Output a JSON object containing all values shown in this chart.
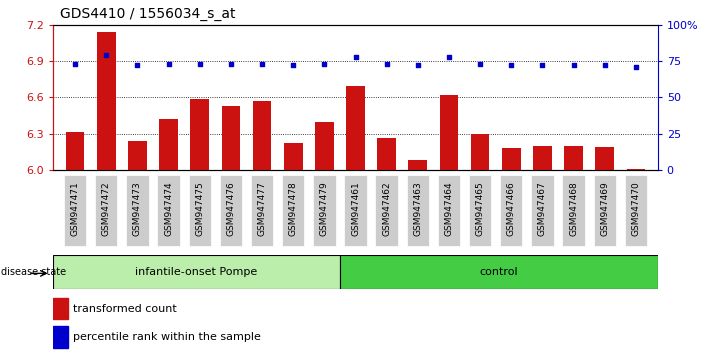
{
  "title": "GDS4410 / 1556034_s_at",
  "samples": [
    "GSM947471",
    "GSM947472",
    "GSM947473",
    "GSM947474",
    "GSM947475",
    "GSM947476",
    "GSM947477",
    "GSM947478",
    "GSM947479",
    "GSM947461",
    "GSM947462",
    "GSM947463",
    "GSM947464",
    "GSM947465",
    "GSM947466",
    "GSM947467",
    "GSM947468",
    "GSM947469",
    "GSM947470"
  ],
  "bar_values": [
    6.31,
    7.14,
    6.24,
    6.42,
    6.59,
    6.53,
    6.57,
    6.22,
    6.4,
    6.69,
    6.26,
    6.08,
    6.62,
    6.3,
    6.18,
    6.2,
    6.2,
    6.19,
    6.01
  ],
  "percentile_values": [
    73,
    79,
    72,
    73,
    73,
    73,
    73,
    72,
    73,
    78,
    73,
    72,
    78,
    73,
    72,
    72,
    72,
    72,
    71
  ],
  "group1_label": "infantile-onset Pompe",
  "group2_label": "control",
  "group1_count": 9,
  "group2_count": 10,
  "ylim_left": [
    6.0,
    7.2
  ],
  "ylim_right": [
    0,
    100
  ],
  "yticks_left": [
    6.0,
    6.3,
    6.6,
    6.9,
    7.2
  ],
  "yticks_right": [
    0,
    25,
    50,
    75,
    100
  ],
  "ytick_labels_right": [
    "0",
    "25",
    "50",
    "75",
    "100%"
  ],
  "bar_color": "#cc1111",
  "percentile_color": "#0000cc",
  "group1_bg": "#bbeeaa",
  "group2_bg": "#44cc44",
  "tick_bg": "#cccccc",
  "legend_bar_label": "transformed count",
  "legend_pct_label": "percentile rank within the sample",
  "disease_state_label": "disease state",
  "title_fontsize": 10,
  "axis_fontsize": 8,
  "tick_fontsize": 6.5,
  "label_fontsize": 8
}
